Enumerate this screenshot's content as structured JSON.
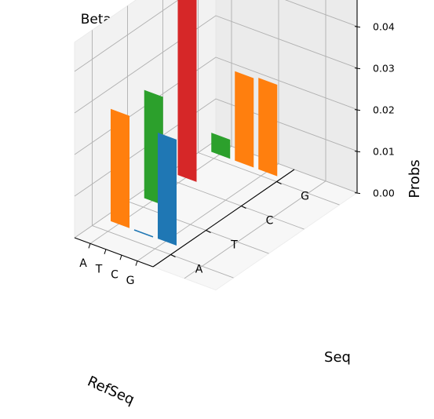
{
  "chart_data": {
    "type": "bar3d",
    "title": "Beta Point Mutation Probabilities",
    "xlabel": "RefSeq",
    "ylabel": "Seq",
    "zlabel": "Probs",
    "x_categories": [
      "A",
      "T",
      "C",
      "G"
    ],
    "y_categories": [
      "A",
      "T",
      "C",
      "G"
    ],
    "zlim": [
      0,
      0.047
    ],
    "zticks": [
      "0.00",
      "0.01",
      "0.02",
      "0.03",
      "0.04"
    ],
    "grid": true,
    "bars": [
      {
        "x": "A",
        "y": "G",
        "value": 0.0046,
        "color": "#2ca02c"
      },
      {
        "x": "A",
        "y": "C",
        "value": 0.046,
        "color": "#d62728"
      },
      {
        "x": "A",
        "y": "T",
        "value": 0.026,
        "color": "#2ca02c"
      },
      {
        "x": "A",
        "y": "A",
        "value": 0.027,
        "color": "#ff7f0e"
      },
      {
        "x": "T",
        "y": "G",
        "value": 0.0215,
        "color": "#ff7f0e"
      },
      {
        "x": "T",
        "y": "A",
        "value": 0.0,
        "color": "#1f77b4"
      },
      {
        "x": "C",
        "y": "G",
        "value": 0.022,
        "color": "#ff7f0e"
      },
      {
        "x": "C",
        "y": "A",
        "value": 0.0255,
        "color": "#1f77b4"
      }
    ]
  }
}
